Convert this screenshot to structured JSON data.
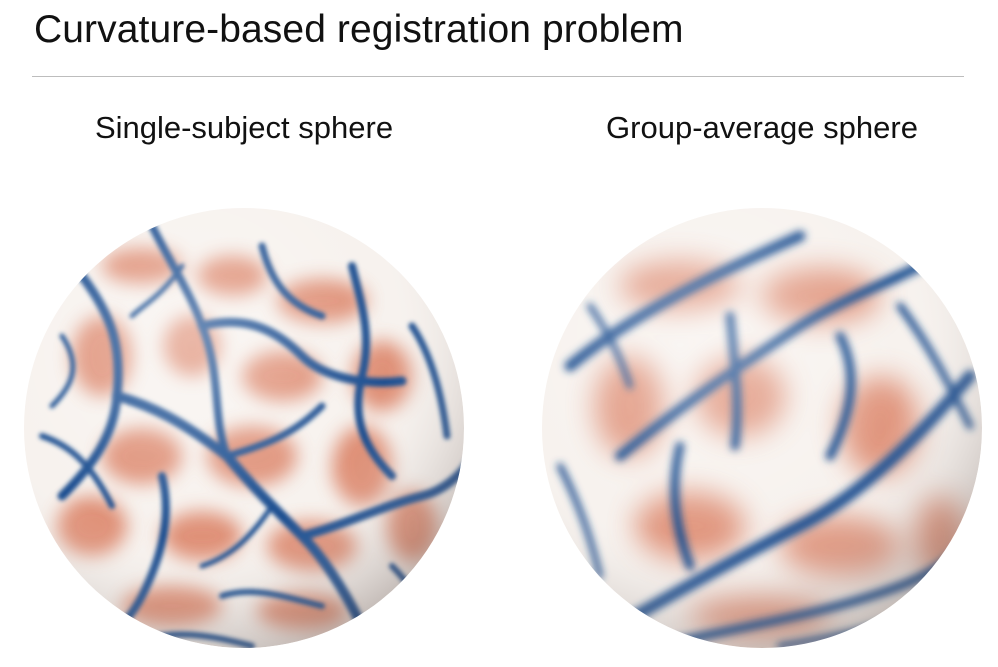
{
  "title": "Curvature-based registration problem",
  "panels": [
    {
      "label": "Single-subject sphere"
    },
    {
      "label": "Group-average sphere"
    }
  ],
  "colormap": {
    "negative": "#1d4f91",
    "neutral": "#f7f2ee",
    "positive": "#d9785a"
  }
}
